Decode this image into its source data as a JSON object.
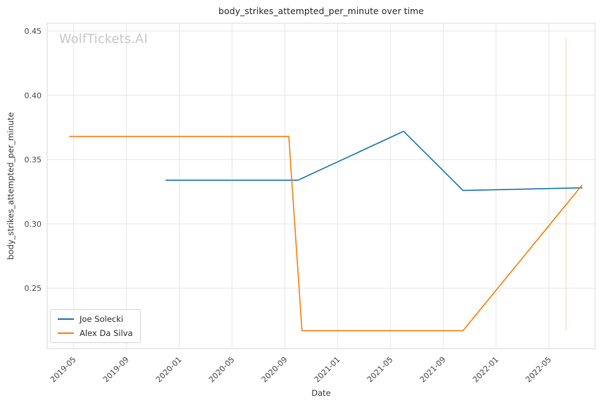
{
  "chart_data": {
    "type": "line",
    "title": "body_strikes_attempted_per_minute over time",
    "xlabel": "Date",
    "ylabel": "body_strikes_attempted_per_minute",
    "watermark": "WolfTickets.AI",
    "grid": true,
    "legend_position": "lower left",
    "x_tick_labels": [
      "2019-05",
      "2019-09",
      "2020-01",
      "2020-05",
      "2020-09",
      "2021-01",
      "2021-05",
      "2021-09",
      "2022-01",
      "2022-05"
    ],
    "x_tick_months": [
      4,
      8,
      12,
      16,
      20,
      24,
      28,
      32,
      36,
      40
    ],
    "xlim_months": [
      2,
      43.5
    ],
    "y_ticks": [
      0.25,
      0.3,
      0.35,
      0.4,
      0.45
    ],
    "ylim": [
      0.203,
      0.456
    ],
    "series": [
      {
        "name": "Joe Solecki",
        "color": "#1f77b4",
        "points": [
          {
            "date": "2019-12",
            "x": 11,
            "y": 0.334
          },
          {
            "date": "2020-10",
            "x": 21,
            "y": 0.334
          },
          {
            "date": "2021-06",
            "x": 29,
            "y": 0.372
          },
          {
            "date": "2021-10",
            "x": 33.5,
            "y": 0.326
          },
          {
            "date": "2022-07",
            "x": 42.5,
            "y": 0.328
          }
        ]
      },
      {
        "name": "Alex Da Silva",
        "color": "#ff7f0e",
        "points": [
          {
            "date": "2019-04",
            "x": 3.7,
            "y": 0.368
          },
          {
            "date": "2020-09",
            "x": 20.3,
            "y": 0.368
          },
          {
            "date": "2020-10",
            "x": 21.3,
            "y": 0.217
          },
          {
            "date": "2021-10",
            "x": 33.5,
            "y": 0.217
          },
          {
            "date": "2022-07",
            "x": 42.5,
            "y": 0.33
          }
        ]
      }
    ],
    "event_marker": {
      "x": 41.3,
      "y_from": 0.217,
      "y_to": 0.445,
      "color": "#ff7f0e",
      "opacity": 0.3
    },
    "style": {
      "grid_color": "#e7e7e7",
      "spine_color": "#d9d9d9",
      "background": "#ffffff"
    }
  }
}
